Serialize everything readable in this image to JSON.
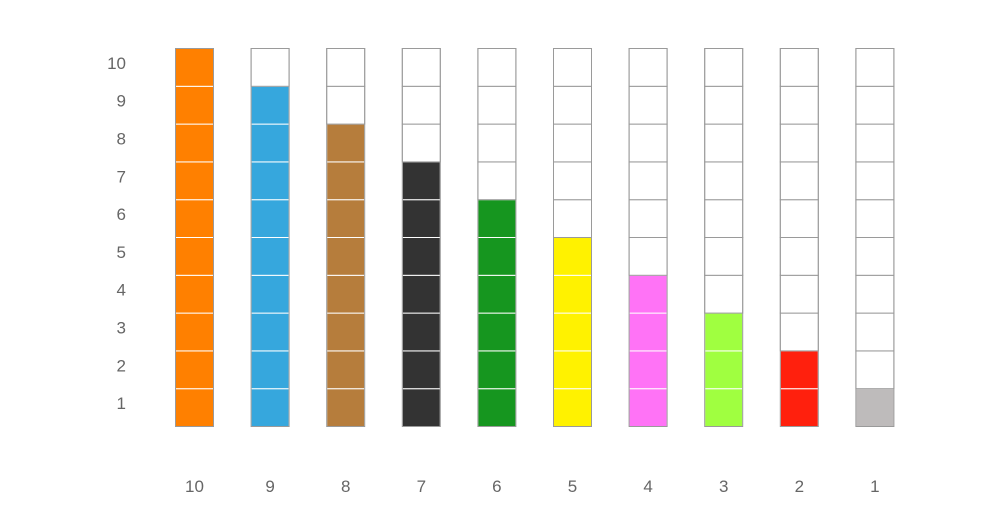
{
  "chart_data": {
    "type": "bar",
    "title": "",
    "xlabel": "",
    "ylabel": "",
    "categories": [
      "10",
      "9",
      "8",
      "7",
      "6",
      "5",
      "4",
      "3",
      "2",
      "1"
    ],
    "values": [
      10,
      9,
      8,
      7,
      6,
      5,
      4,
      3,
      2,
      1
    ],
    "colors": [
      "#FF8000",
      "#36A7DD",
      "#B67D3C",
      "#333333",
      "#16961F",
      "#FFF200",
      "#FF73F6",
      "#A0FF40",
      "#FF200D",
      "#BEBBBB"
    ],
    "y_ticks": [
      "1",
      "2",
      "3",
      "4",
      "5",
      "6",
      "7",
      "8",
      "9",
      "10"
    ],
    "ylim": [
      0,
      10
    ],
    "grid": false,
    "legend": "none"
  }
}
